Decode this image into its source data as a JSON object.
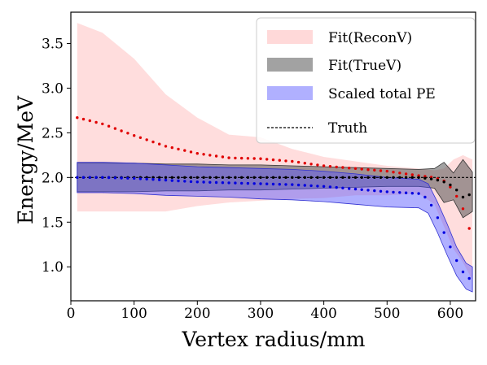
{
  "chart_data": {
    "type": "line",
    "xlabel": "Vertex radius/mm",
    "ylabel": "Energy/MeV",
    "xlim": [
      0,
      640
    ],
    "ylim": [
      0.62,
      3.85
    ],
    "xticks": [
      0,
      100,
      200,
      300,
      400,
      500,
      600
    ],
    "yticks": [
      1.0,
      1.5,
      2.0,
      2.5,
      3.0,
      3.5
    ],
    "xtick_labels": [
      "0",
      "100",
      "200",
      "300",
      "400",
      "500",
      "600"
    ],
    "ytick_labels": [
      "1.0",
      "1.5",
      "2.0",
      "2.5",
      "3.0",
      "3.5"
    ],
    "grid": false,
    "legend_position": "top-right",
    "legend": [
      "Fit(ReconV)",
      "Fit(TrueV)",
      "Scaled total PE",
      "Truth"
    ],
    "colors": {
      "recon_band": "#ffb3b3",
      "recon_points": "#e00000",
      "true_band": "#555555",
      "true_points": "#000000",
      "pe_band": "#5050ff",
      "pe_points": "#0000e0",
      "truth_line": "#000000"
    },
    "series": [
      {
        "name": "Fit(ReconV)",
        "x": [
          10,
          50,
          100,
          150,
          200,
          250,
          300,
          350,
          400,
          450,
          500,
          550,
          575,
          590,
          605,
          620,
          635
        ],
        "y": [
          2.67,
          2.6,
          2.47,
          2.35,
          2.27,
          2.22,
          2.21,
          2.18,
          2.13,
          2.1,
          2.07,
          2.02,
          2.0,
          1.96,
          1.86,
          1.65,
          1.32
        ],
        "upper": [
          3.73,
          3.62,
          3.33,
          2.93,
          2.67,
          2.48,
          2.45,
          2.32,
          2.23,
          2.18,
          2.13,
          2.1,
          2.08,
          2.1,
          2.2,
          2.25,
          2.2
        ],
        "lower": [
          1.62,
          1.62,
          1.62,
          1.62,
          1.68,
          1.72,
          1.74,
          1.76,
          1.77,
          1.8,
          1.8,
          1.82,
          1.7,
          1.45,
          1.2,
          1.05,
          0.85
        ]
      },
      {
        "name": "Fit(TrueV)",
        "x": [
          10,
          50,
          100,
          150,
          200,
          250,
          300,
          350,
          400,
          450,
          500,
          550,
          575,
          590,
          605,
          620,
          635
        ],
        "y": [
          2.0,
          2.0,
          2.0,
          2.0,
          2.0,
          2.0,
          2.0,
          2.0,
          2.0,
          2.0,
          2.0,
          2.0,
          1.98,
          1.95,
          1.9,
          1.78,
          1.82
        ],
        "upper": [
          2.16,
          2.16,
          2.16,
          2.15,
          2.15,
          2.14,
          2.14,
          2.13,
          2.12,
          2.11,
          2.1,
          2.09,
          2.1,
          2.17,
          2.05,
          2.2,
          2.06
        ],
        "lower": [
          1.84,
          1.84,
          1.84,
          1.85,
          1.85,
          1.86,
          1.86,
          1.87,
          1.88,
          1.89,
          1.9,
          1.9,
          1.88,
          1.72,
          1.75,
          1.55,
          1.62
        ]
      },
      {
        "name": "Scaled total PE",
        "x": [
          10,
          50,
          100,
          150,
          200,
          250,
          300,
          350,
          400,
          450,
          500,
          550,
          565,
          580,
          595,
          610,
          625,
          635
        ],
        "y": [
          2.0,
          2.0,
          1.99,
          1.97,
          1.95,
          1.94,
          1.93,
          1.92,
          1.9,
          1.87,
          1.84,
          1.82,
          1.76,
          1.55,
          1.3,
          1.07,
          0.88,
          0.86
        ],
        "upper": [
          2.17,
          2.17,
          2.16,
          2.14,
          2.12,
          2.11,
          2.1,
          2.09,
          2.07,
          2.04,
          2.0,
          1.98,
          1.93,
          1.72,
          1.48,
          1.22,
          1.04,
          1.0
        ],
        "lower": [
          1.83,
          1.83,
          1.82,
          1.8,
          1.79,
          1.78,
          1.76,
          1.75,
          1.73,
          1.7,
          1.67,
          1.66,
          1.6,
          1.38,
          1.13,
          0.9,
          0.75,
          0.72
        ]
      },
      {
        "name": "Truth",
        "x": [
          0,
          640
        ],
        "y": [
          2.0,
          2.0
        ]
      }
    ]
  }
}
